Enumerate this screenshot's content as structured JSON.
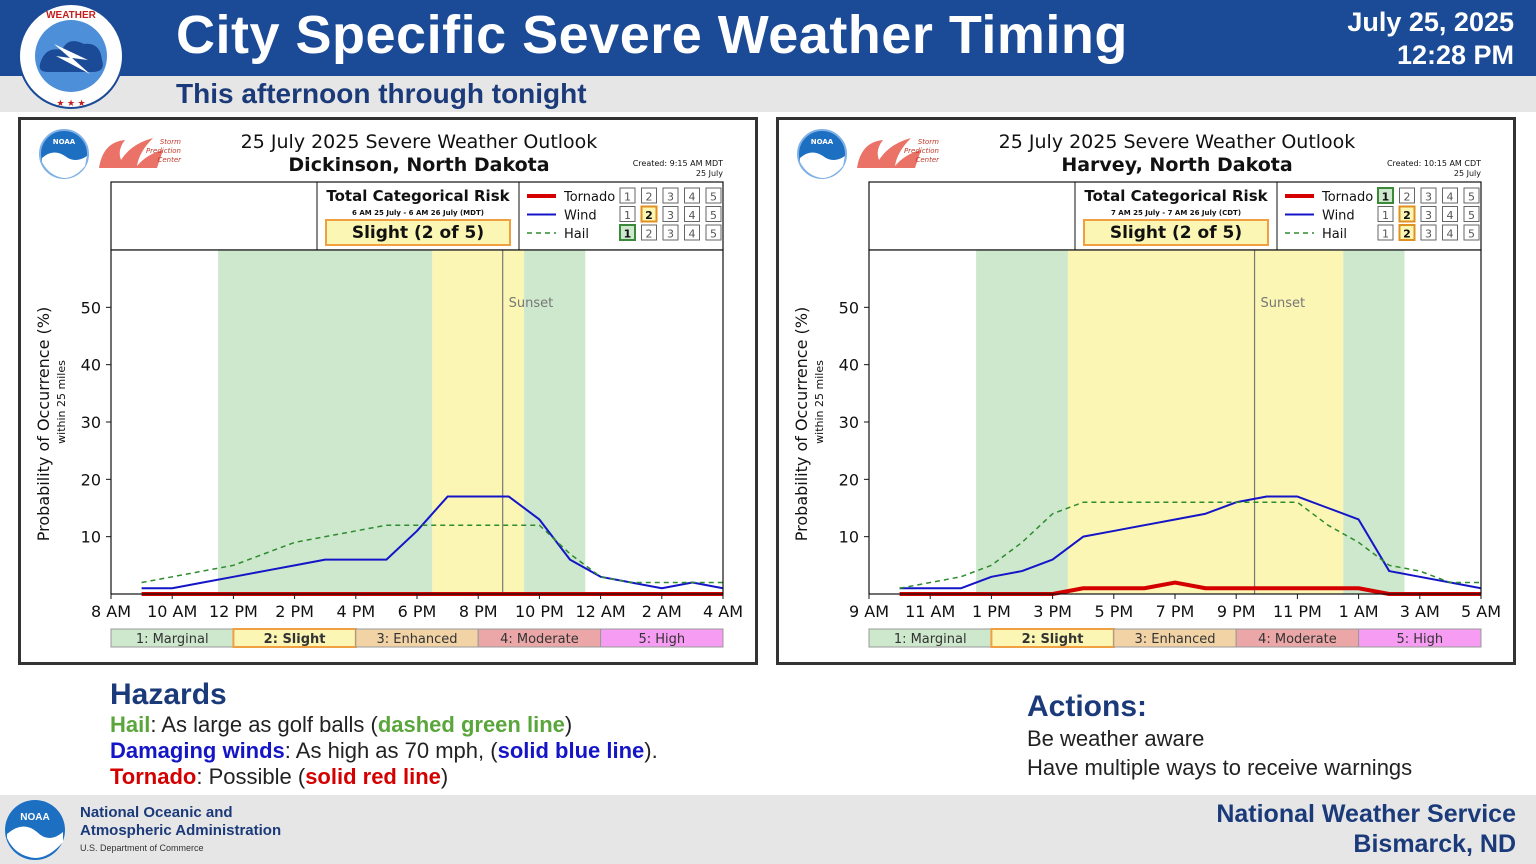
{
  "header": {
    "title": "City Specific Severe Weather Timing",
    "date": "July 25, 2025",
    "time": "12:28 PM",
    "subtitle": "This afternoon through tonight",
    "logo_text": "NATIONAL WEATHER SERVICE"
  },
  "colors": {
    "header_bg": "#1b4a96",
    "marginal": "#cde8cc",
    "slight": "#fbf6b4",
    "enhanced": "#f2d3a6",
    "moderate": "#eba7a7",
    "high": "#f79cf3",
    "tornado": "#d40000",
    "wind": "#1515c8",
    "hail": "#2e8b2e"
  },
  "charts": [
    {
      "title": "25 July 2025 Severe Weather Outlook",
      "location": "Dickinson, North Dakota",
      "created": "Created: 9:15 AM MDT",
      "created_date": "25 July",
      "risk_header": "Total Categorical Risk",
      "risk_period": "6 AM 25 July - 6 AM 26 July (MDT)",
      "risk_label": "Slight (2 of 5)",
      "sunset_label": "Sunset"
    },
    {
      "title": "25 July 2025 Severe Weather Outlook",
      "location": "Harvey, North Dakota",
      "created": "Created: 10:15 AM CDT",
      "created_date": "25 July",
      "risk_header": "Total Categorical Risk",
      "risk_period": "7 AM 25 July - 7 AM 26 July (CDT)",
      "risk_label": "Slight (2 of 5)",
      "sunset_label": "Sunset"
    }
  ],
  "chart_data": [
    {
      "type": "line",
      "title": "25 July 2025 Severe Weather Outlook",
      "subtitle": "Dickinson, North Dakota",
      "ylabel": "Probability of Occurrence (%)",
      "ylabel_sub": "within 25 miles",
      "x_tick_labels": [
        "8 AM",
        "10 AM",
        "12 PM",
        "2 PM",
        "4 PM",
        "6 PM",
        "8 PM",
        "10 PM",
        "12 AM",
        "2 AM",
        "4 AM"
      ],
      "xlim": [
        0,
        20
      ],
      "ylim": [
        0,
        60
      ],
      "yticks": [
        10,
        20,
        30,
        40,
        50
      ],
      "legend": [
        "Tornado",
        "Wind",
        "Hail"
      ],
      "legend_levels": {
        "Tornado": 0,
        "Wind": 2,
        "Hail": 1
      },
      "bands": [
        {
          "from": 3.5,
          "to": 10.5,
          "category": "marginal"
        },
        {
          "from": 10.5,
          "to": 13.5,
          "category": "slight"
        },
        {
          "from": 13.5,
          "to": 15.5,
          "category": "marginal"
        }
      ],
      "sunset_x": 12.8,
      "series": [
        {
          "name": "Wind",
          "style": "solid",
          "x": [
            1,
            2,
            3,
            4,
            5,
            6,
            7,
            8,
            9,
            10,
            11,
            12,
            13,
            14,
            15,
            16,
            17,
            18,
            19,
            20
          ],
          "y": [
            1,
            1,
            2,
            3,
            4,
            5,
            6,
            6,
            6,
            11,
            17,
            17,
            17,
            13,
            6,
            3,
            2,
            1,
            2,
            1
          ]
        },
        {
          "name": "Hail",
          "style": "dashed",
          "x": [
            1,
            2,
            3,
            4,
            5,
            6,
            7,
            8,
            9,
            10,
            11,
            12,
            13,
            14,
            15,
            16,
            17,
            18,
            19,
            20
          ],
          "y": [
            2,
            3,
            4,
            5,
            7,
            9,
            10,
            11,
            12,
            12,
            12,
            12,
            12,
            12,
            7,
            3,
            2,
            2,
            2,
            2
          ]
        },
        {
          "name": "Tornado",
          "style": "solid",
          "x": [
            1,
            20
          ],
          "y": [
            0,
            0
          ]
        }
      ]
    },
    {
      "type": "line",
      "title": "25 July 2025 Severe Weather Outlook",
      "subtitle": "Harvey, North Dakota",
      "ylabel": "Probability of Occurrence (%)",
      "ylabel_sub": "within 25 miles",
      "x_tick_labels": [
        "9 AM",
        "11 AM",
        "1 PM",
        "3 PM",
        "5 PM",
        "7 PM",
        "9 PM",
        "11 PM",
        "1 AM",
        "3 AM",
        "5 AM"
      ],
      "xlim": [
        0,
        20
      ],
      "ylim": [
        0,
        60
      ],
      "yticks": [
        10,
        20,
        30,
        40,
        50
      ],
      "legend": [
        "Tornado",
        "Wind",
        "Hail"
      ],
      "legend_levels": {
        "Tornado": 1,
        "Wind": 2,
        "Hail": 2
      },
      "bands": [
        {
          "from": 3.5,
          "to": 6.5,
          "category": "marginal"
        },
        {
          "from": 6.5,
          "to": 15.5,
          "category": "slight"
        },
        {
          "from": 15.5,
          "to": 17.5,
          "category": "marginal"
        }
      ],
      "sunset_x": 12.6,
      "series": [
        {
          "name": "Wind",
          "style": "solid",
          "x": [
            1,
            2,
            3,
            4,
            5,
            6,
            7,
            8,
            9,
            10,
            11,
            12,
            13,
            14,
            15,
            16,
            17,
            18,
            19,
            20
          ],
          "y": [
            1,
            1,
            1,
            3,
            4,
            6,
            10,
            11,
            12,
            13,
            14,
            16,
            17,
            17,
            15,
            13,
            4,
            3,
            2,
            1
          ]
        },
        {
          "name": "Hail",
          "style": "dashed",
          "x": [
            1,
            2,
            3,
            4,
            5,
            6,
            7,
            8,
            9,
            10,
            11,
            12,
            13,
            14,
            15,
            16,
            17,
            18,
            19,
            20
          ],
          "y": [
            1,
            2,
            3,
            5,
            9,
            14,
            16,
            16,
            16,
            16,
            16,
            16,
            16,
            16,
            12,
            9,
            5,
            4,
            2,
            2
          ]
        },
        {
          "name": "Tornado",
          "style": "solid",
          "x": [
            1,
            2,
            3,
            4,
            5,
            6,
            7,
            8,
            9,
            10,
            11,
            12,
            13,
            14,
            15,
            16,
            17,
            18,
            19,
            20
          ],
          "y": [
            0,
            0,
            0,
            0,
            0,
            0,
            1,
            1,
            1,
            2,
            1,
            1,
            1,
            1,
            1,
            1,
            0,
            0,
            0,
            0
          ]
        }
      ]
    }
  ],
  "category_legend": [
    "1: Marginal",
    "2: Slight",
    "3: Enhanced",
    "4: Moderate",
    "5: High"
  ],
  "level_numbers": [
    "1",
    "2",
    "3",
    "4",
    "5"
  ],
  "hazards": {
    "title": "Hazards",
    "hail_label": "Hail",
    "hail_text": ": As large as golf balls (",
    "hail_paren": "dashed green line",
    "hail_close": ")",
    "wind_label": "Damaging winds",
    "wind_text": ": As high as 70 mph, (",
    "wind_paren": "solid blue line",
    "wind_close": ").",
    "tornado_label": "Tornado",
    "tornado_text": ": Possible (",
    "tornado_paren": "solid red line",
    "tornado_close": ")"
  },
  "actions": {
    "title": "Actions:",
    "lines": [
      "Be weather aware",
      "Have multiple ways to receive warnings"
    ]
  },
  "footer": {
    "noaa_line1": "National Oceanic and",
    "noaa_line2": "Atmospheric Administration",
    "noaa_dept": "U.S. Department of Commerce",
    "office_line1": "National Weather Service",
    "office_line2": "Bismarck, ND"
  },
  "logos": {
    "noaa": "NOAA",
    "spc_line1": "Storm",
    "spc_line2": "Prediction",
    "spc_line3": "Center"
  }
}
